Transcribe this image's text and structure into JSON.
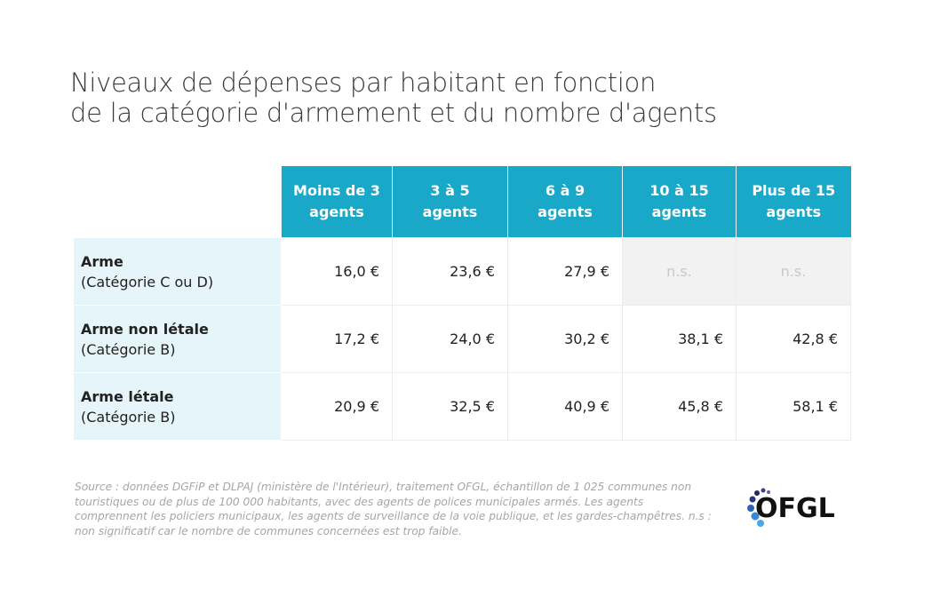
{
  "title": {
    "line1": "Niveaux de dépenses par habitant en fonction",
    "line2": "de la catégorie d'armement et du nombre d'agents"
  },
  "chart_data": {
    "type": "table",
    "columns": [
      {
        "l1": "Moins de 3",
        "l2": "agents"
      },
      {
        "l1": "3 à 5",
        "l2": "agents"
      },
      {
        "l1": "6 à 9",
        "l2": "agents"
      },
      {
        "l1": "10 à 15",
        "l2": "agents"
      },
      {
        "l1": "Plus de 15",
        "l2": "agents"
      }
    ],
    "rows": [
      {
        "label": "Arme",
        "sub": "(Catégorie C ou D)",
        "values": [
          "16,0 €",
          "23,6 €",
          "27,9 €",
          "n.s.",
          "n.s."
        ]
      },
      {
        "label": "Arme non létale",
        "sub": "(Catégorie B)",
        "values": [
          "17,2 €",
          "24,0 €",
          "30,2 €",
          "38,1 €",
          "42,8 €"
        ]
      },
      {
        "label": "Arme létale",
        "sub": "(Catégorie B)",
        "values": [
          "20,9 €",
          "32,5 €",
          "40,9 €",
          "45,8 €",
          "58,1 €"
        ]
      }
    ]
  },
  "source": "Source : données DGFiP et DLPAJ (ministère de l'Intérieur), traitement OFGL, échantillon de 1 025 communes non touristiques ou de plus de 100 000 habitants, avec des agents de polices municipales armés. Les agents comprennent les policiers municipaux, les agents de surveillance de la voie publique, et les gardes-champêtres. n.s : non significatif car le nombre de communes concernées est trop faible.",
  "logo": {
    "text": "OFGL"
  },
  "colors": {
    "header": "#1aa8c8",
    "label_bg": "#e6f5f9",
    "ns_bg": "#f2f2f2"
  }
}
